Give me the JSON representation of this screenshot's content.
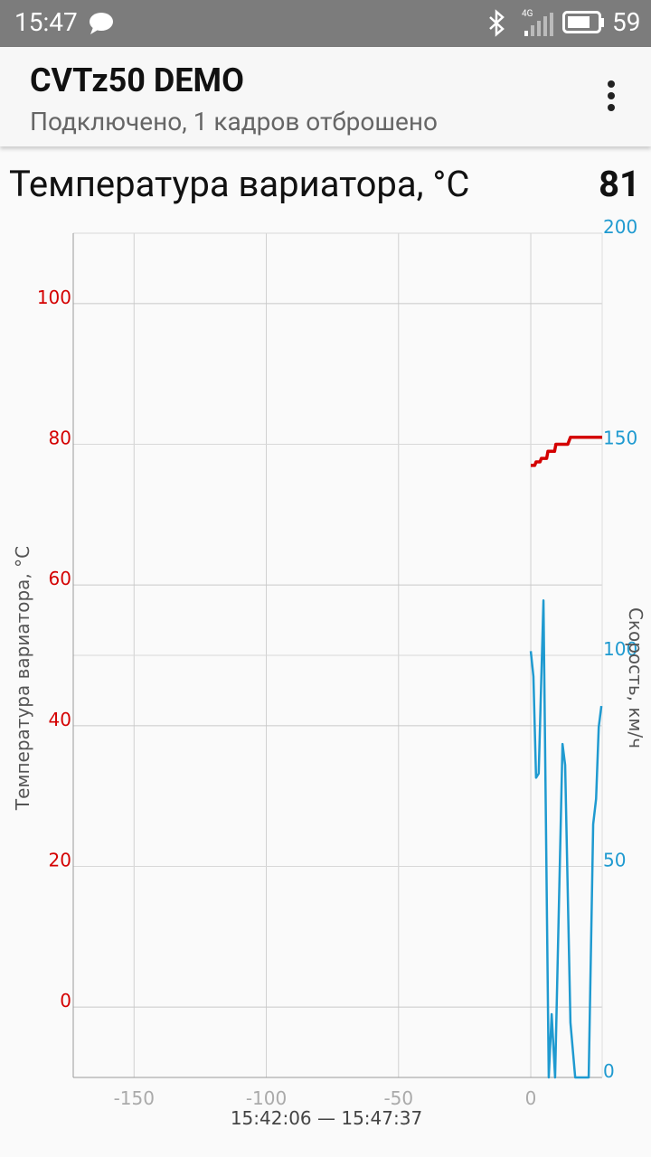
{
  "status_bar": {
    "time": "15:47",
    "network": "4G",
    "battery": "59"
  },
  "app_bar": {
    "title": "CVTz50 DEMO",
    "subtitle": "Подключено, 1 кадров отброшено"
  },
  "metric": {
    "label": "Температура вариатора, °C",
    "value": 81
  },
  "chart_data": {
    "type": "line",
    "y_label": "Температура вариатора, °C",
    "y2_label": "Скорость, км/ч",
    "x_label": "15:42:06 — 15:47:37",
    "xlim": [
      -173,
      27
    ],
    "xticks": [
      -150,
      -100,
      -50,
      0
    ],
    "ylim": [
      -10,
      110
    ],
    "yticks": [
      0,
      20,
      40,
      60,
      80,
      100
    ],
    "y2lim": [
      0,
      200
    ],
    "y2ticks": [
      0,
      50,
      100,
      150,
      200
    ],
    "grid": true,
    "series": [
      {
        "name": "Температура вариатора, °C",
        "color": "#d40000",
        "x": [
          0,
          1.5,
          2,
          3.5,
          4,
          6,
          6.5,
          9,
          9.5,
          14,
          15,
          27
        ],
        "values": [
          77,
          77,
          77.5,
          77.5,
          78,
          78,
          79,
          79,
          80,
          80,
          81,
          81
        ]
      },
      {
        "name": "Скорость, км/ч",
        "color": "#1f9ad0",
        "axis": "y2",
        "x": [
          0,
          1,
          2,
          3,
          4.8,
          6.8,
          7.9,
          9.2,
          12,
          13,
          15,
          16.8,
          21.9,
          23.6,
          24.7,
          25.7,
          26.7
        ],
        "values": [
          101,
          95,
          71,
          72,
          113,
          0,
          15,
          0,
          79,
          74,
          13,
          0,
          0,
          60,
          66,
          83,
          88
        ]
      }
    ]
  }
}
